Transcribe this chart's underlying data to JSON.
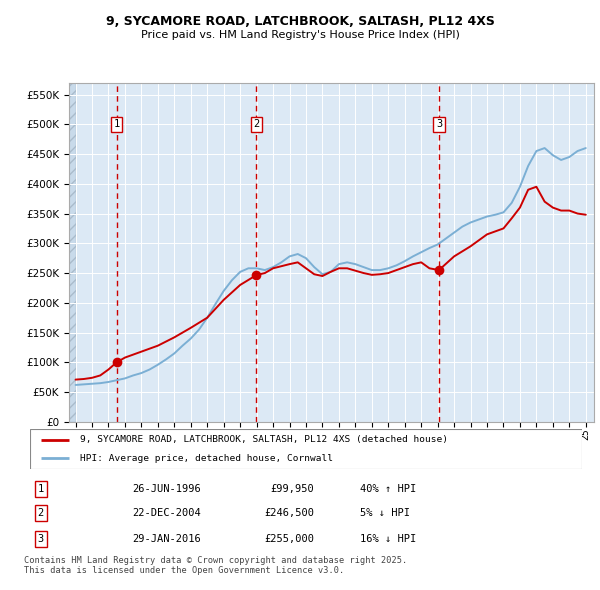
{
  "title_line1": "9, SYCAMORE ROAD, LATCHBROOK, SALTASH, PL12 4XS",
  "title_line2": "Price paid vs. HM Land Registry's House Price Index (HPI)",
  "background_color": "#dce9f5",
  "grid_color": "#ffffff",
  "sale_years": [
    1996.49,
    2004.98,
    2016.08
  ],
  "sale_prices": [
    99950,
    246500,
    255000
  ],
  "sale_labels": [
    "1",
    "2",
    "3"
  ],
  "vline_color": "#cc0000",
  "hpi_line_color": "#7bafd4",
  "price_line_color": "#cc0000",
  "legend_entries": [
    "9, SYCAMORE ROAD, LATCHBROOK, SALTASH, PL12 4XS (detached house)",
    "HPI: Average price, detached house, Cornwall"
  ],
  "table_rows": [
    {
      "num": "1",
      "date": "26-JUN-1996",
      "price": "£99,950",
      "hpi": "40% ↑ HPI"
    },
    {
      "num": "2",
      "date": "22-DEC-2004",
      "price": "£246,500",
      "hpi": "5% ↓ HPI"
    },
    {
      "num": "3",
      "date": "29-JAN-2016",
      "price": "£255,000",
      "hpi": "16% ↓ HPI"
    }
  ],
  "footnote": "Contains HM Land Registry data © Crown copyright and database right 2025.\nThis data is licensed under the Open Government Licence v3.0.",
  "yticks": [
    0,
    50000,
    100000,
    150000,
    200000,
    250000,
    300000,
    350000,
    400000,
    450000,
    500000,
    550000
  ],
  "ylim_top": 570000,
  "xlim_start": 1993.6,
  "xlim_end": 2025.5,
  "hpi_x": [
    1994,
    1994.5,
    1995,
    1995.5,
    1996,
    1996.5,
    1997,
    1997.5,
    1998,
    1998.5,
    1999,
    1999.5,
    2000,
    2000.5,
    2001,
    2001.5,
    2002,
    2002.5,
    2003,
    2003.5,
    2004,
    2004.5,
    2005,
    2005.5,
    2006,
    2006.5,
    2007,
    2007.5,
    2008,
    2008.5,
    2009,
    2009.5,
    2010,
    2010.5,
    2011,
    2011.5,
    2012,
    2012.5,
    2013,
    2013.5,
    2014,
    2014.5,
    2015,
    2015.5,
    2016,
    2016.5,
    2017,
    2017.5,
    2018,
    2018.5,
    2019,
    2019.5,
    2020,
    2020.5,
    2021,
    2021.5,
    2022,
    2022.5,
    2023,
    2023.5,
    2024,
    2024.5,
    2025
  ],
  "hpi_y": [
    62000,
    63000,
    64000,
    65000,
    67000,
    70000,
    73000,
    78000,
    82000,
    88000,
    96000,
    105000,
    115000,
    128000,
    140000,
    155000,
    175000,
    198000,
    220000,
    238000,
    252000,
    258000,
    258000,
    255000,
    260000,
    268000,
    278000,
    282000,
    275000,
    260000,
    248000,
    252000,
    265000,
    268000,
    265000,
    260000,
    255000,
    255000,
    258000,
    263000,
    270000,
    278000,
    285000,
    292000,
    298000,
    308000,
    318000,
    328000,
    335000,
    340000,
    345000,
    348000,
    352000,
    368000,
    395000,
    430000,
    455000,
    460000,
    448000,
    440000,
    445000,
    455000,
    460000
  ],
  "price_x": [
    1994,
    1994.5,
    1995,
    1995.5,
    1996,
    1996.49,
    1997,
    1998,
    1999,
    2000,
    2001,
    2002,
    2003,
    2004,
    2004.98,
    2005.5,
    2006,
    2007,
    2007.5,
    2008,
    2008.5,
    2009,
    2009.5,
    2010,
    2010.5,
    2011,
    2011.5,
    2012,
    2012.5,
    2013,
    2013.5,
    2014,
    2014.5,
    2015,
    2015.5,
    2016.08,
    2017,
    2018,
    2018.5,
    2019,
    2019.5,
    2020,
    2020.5,
    2021,
    2021.5,
    2022,
    2022.5,
    2023,
    2023.5,
    2024,
    2024.5,
    2025
  ],
  "price_y": [
    71000,
    72000,
    74000,
    78000,
    88000,
    99950,
    108000,
    118000,
    128000,
    142000,
    158000,
    175000,
    205000,
    230000,
    246500,
    250000,
    258000,
    265000,
    268000,
    258000,
    248000,
    245000,
    252000,
    258000,
    258000,
    254000,
    250000,
    247000,
    248000,
    250000,
    255000,
    260000,
    265000,
    268000,
    258000,
    255000,
    278000,
    295000,
    305000,
    315000,
    320000,
    325000,
    342000,
    360000,
    390000,
    395000,
    370000,
    360000,
    355000,
    355000,
    350000,
    348000
  ]
}
